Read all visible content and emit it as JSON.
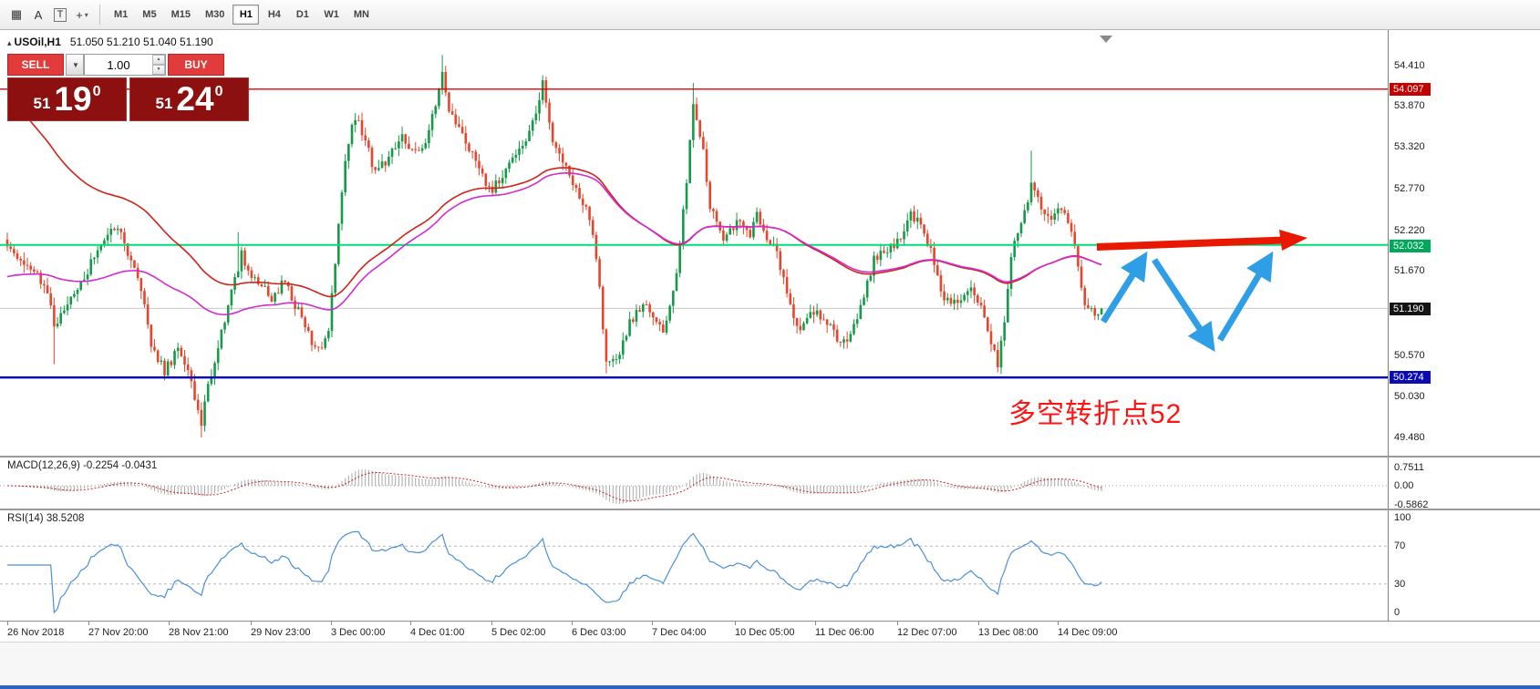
{
  "toolbar": {
    "tools": [
      {
        "glyph": "▦"
      },
      {
        "glyph": "A"
      },
      {
        "glyph": "T"
      },
      {
        "glyph": "+",
        "caret": "▾"
      }
    ],
    "timeframes": [
      "M1",
      "M5",
      "M15",
      "M30",
      "H1",
      "H4",
      "D1",
      "W1",
      "MN"
    ],
    "active_timeframe": "H1"
  },
  "chart": {
    "marker": "▴",
    "title": "USOil,H1",
    "ohlc": "51.050 51.210 51.040 51.190",
    "hlines": [
      {
        "price": 51.19,
        "color": "#c9c9c9",
        "width": 1
      },
      {
        "price": 54.097,
        "color": "#e00000",
        "width": 1.4
      },
      {
        "price": 52.032,
        "color": "#00dc78",
        "width": 2
      },
      {
        "price": 50.274,
        "color": "#0000c8",
        "width": 2.4
      }
    ]
  },
  "trade_panel": {
    "sell_label": "SELL",
    "buy_label": "BUY",
    "volume": "1.00",
    "caret": "▼",
    "spin_up": "▲",
    "spin_down": "▼",
    "sell_price": {
      "head": "51",
      "big": "19",
      "sup": "0"
    },
    "buy_price": {
      "head": "51",
      "big": "24",
      "sup": "0"
    }
  },
  "price_scale": {
    "labels": [
      [
        "54.410",
        39
      ],
      [
        "53.870",
        83
      ],
      [
        "53.320",
        128
      ],
      [
        "52.770",
        174
      ],
      [
        "52.220",
        220
      ],
      [
        "51.670",
        264
      ],
      [
        "50.570",
        357
      ],
      [
        "50.030",
        402
      ],
      [
        "49.480",
        447
      ]
    ],
    "badges": [
      [
        "54.097",
        65,
        "#c40000"
      ],
      [
        "52.032",
        237,
        "#00a85a"
      ],
      [
        "51.190",
        306,
        "#151515"
      ],
      [
        "50.274",
        381,
        "#0b0bb4"
      ]
    ],
    "macd_axis": [
      [
        "0.7511",
        480
      ],
      [
        "0.00",
        500
      ],
      [
        "-0.5862",
        521
      ]
    ],
    "rsi_axis": [
      [
        "100",
        535
      ],
      [
        "70",
        566
      ],
      [
        "30",
        608
      ],
      [
        "0",
        639
      ]
    ]
  },
  "indicators": {
    "macd": {
      "label": "MACD(12,26,9) -0.2254 -0.0431",
      "fast": 12,
      "slow": 26,
      "signal": 9,
      "value": -0.2254,
      "signal_value": -0.0431
    },
    "rsi": {
      "label": "RSI(14) 38.5208",
      "period": 14,
      "value": 38.5208,
      "levels": [
        70,
        30
      ]
    }
  },
  "time_axis": [
    [
      "26 Nov 2018",
      8
    ],
    [
      "27 Nov 20:00",
      97
    ],
    [
      "28 Nov 21:00",
      185
    ],
    [
      "29 Nov 23:00",
      275
    ],
    [
      "3 Dec 00:00",
      363
    ],
    [
      "4 Dec 01:00",
      450
    ],
    [
      "5 Dec 02:00",
      539
    ],
    [
      "6 Dec 03:00",
      627
    ],
    [
      "7 Dec 04:00",
      715
    ],
    [
      "10 Dec 05:00",
      806
    ],
    [
      "11 Dec 06:00",
      894
    ],
    [
      "12 Dec 07:00",
      984
    ],
    [
      "13 Dec 08:00",
      1073
    ],
    [
      "14 Dec 09:00",
      1160
    ]
  ],
  "annotations": {
    "note": "多空转折点52",
    "note_color": "#ff1414",
    "zigzag_color": "#2e9fe6",
    "trend_color": "#e81900"
  },
  "chart_data": {
    "type": "candlestick",
    "symbol": "USOil",
    "timeframe": "H1",
    "open": 51.05,
    "high": 51.21,
    "low": 51.04,
    "close": 51.19,
    "last_close": 51.19,
    "levels": {
      "resistance": 54.097,
      "pivot": 52.032,
      "support": 50.274
    },
    "y_axis_range": [
      49.3,
      54.88
    ],
    "bars": 328,
    "waypoints": [
      [
        0,
        52.05
      ],
      [
        6,
        51.75
      ],
      [
        12,
        51.45
      ],
      [
        14,
        50.95
      ],
      [
        18,
        51.25
      ],
      [
        24,
        51.7
      ],
      [
        30,
        52.2
      ],
      [
        33,
        52.3
      ],
      [
        36,
        51.9
      ],
      [
        40,
        51.45
      ],
      [
        43,
        50.75
      ],
      [
        47,
        50.35
      ],
      [
        51,
        50.65
      ],
      [
        55,
        50.2
      ],
      [
        58,
        49.7
      ],
      [
        60,
        50.15
      ],
      [
        64,
        50.9
      ],
      [
        68,
        51.55
      ],
      [
        70,
        51.9
      ],
      [
        74,
        51.55
      ],
      [
        79,
        51.35
      ],
      [
        83,
        51.55
      ],
      [
        87,
        51.15
      ],
      [
        91,
        50.75
      ],
      [
        94,
        50.65
      ],
      [
        96,
        50.9
      ],
      [
        99,
        52.3
      ],
      [
        101,
        53.2
      ],
      [
        104,
        53.75
      ],
      [
        107,
        53.4
      ],
      [
        110,
        53.0
      ],
      [
        114,
        53.2
      ],
      [
        118,
        53.45
      ],
      [
        122,
        53.25
      ],
      [
        126,
        53.5
      ],
      [
        130,
        54.35
      ],
      [
        132,
        53.85
      ],
      [
        136,
        53.5
      ],
      [
        141,
        53.0
      ],
      [
        145,
        52.75
      ],
      [
        150,
        53.1
      ],
      [
        154,
        53.3
      ],
      [
        158,
        53.75
      ],
      [
        160,
        54.15
      ],
      [
        163,
        53.4
      ],
      [
        168,
        52.95
      ],
      [
        173,
        52.5
      ],
      [
        176,
        51.9
      ],
      [
        179,
        50.5
      ],
      [
        182,
        50.45
      ],
      [
        186,
        51.0
      ],
      [
        190,
        51.25
      ],
      [
        193,
        51.1
      ],
      [
        196,
        50.85
      ],
      [
        200,
        51.6
      ],
      [
        203,
        52.9
      ],
      [
        205,
        53.95
      ],
      [
        208,
        53.3
      ],
      [
        210,
        52.55
      ],
      [
        214,
        52.1
      ],
      [
        218,
        52.35
      ],
      [
        222,
        52.15
      ],
      [
        224,
        52.4
      ],
      [
        230,
        51.9
      ],
      [
        233,
        51.45
      ],
      [
        236,
        50.9
      ],
      [
        240,
        51.15
      ],
      [
        244,
        51.05
      ],
      [
        248,
        50.8
      ],
      [
        251,
        50.7
      ],
      [
        255,
        51.2
      ],
      [
        259,
        51.85
      ],
      [
        263,
        52.0
      ],
      [
        267,
        52.1
      ],
      [
        270,
        52.45
      ],
      [
        273,
        52.3
      ],
      [
        277,
        51.8
      ],
      [
        280,
        51.3
      ],
      [
        284,
        51.25
      ],
      [
        288,
        51.4
      ],
      [
        291,
        51.2
      ],
      [
        294,
        50.7
      ],
      [
        296,
        50.45
      ],
      [
        298,
        51.0
      ],
      [
        300,
        51.9
      ],
      [
        303,
        52.3
      ],
      [
        306,
        52.85
      ],
      [
        309,
        52.5
      ],
      [
        312,
        52.35
      ],
      [
        315,
        52.55
      ],
      [
        318,
        52.25
      ],
      [
        320,
        51.7
      ],
      [
        322,
        51.25
      ],
      [
        325,
        51.15
      ],
      [
        327,
        51.19
      ]
    ],
    "wick_spikes": [
      [
        14,
        "low",
        50.45
      ],
      [
        58,
        "low",
        49.48
      ],
      [
        69,
        "high",
        52.2
      ],
      [
        130,
        "high",
        54.55
      ],
      [
        160,
        "high",
        54.28
      ],
      [
        179,
        "low",
        50.33
      ],
      [
        205,
        "high",
        54.18
      ],
      [
        296,
        "low",
        50.42
      ],
      [
        306,
        "high",
        53.28
      ]
    ],
    "ma": [
      {
        "color": "#cc2418",
        "period": 75,
        "seed": 54.1
      },
      {
        "color": "#d12bd1",
        "period": 80,
        "seed": 51.6
      }
    ],
    "candle_up_color": "#149a48",
    "candle_down_color": "#e8452c"
  }
}
